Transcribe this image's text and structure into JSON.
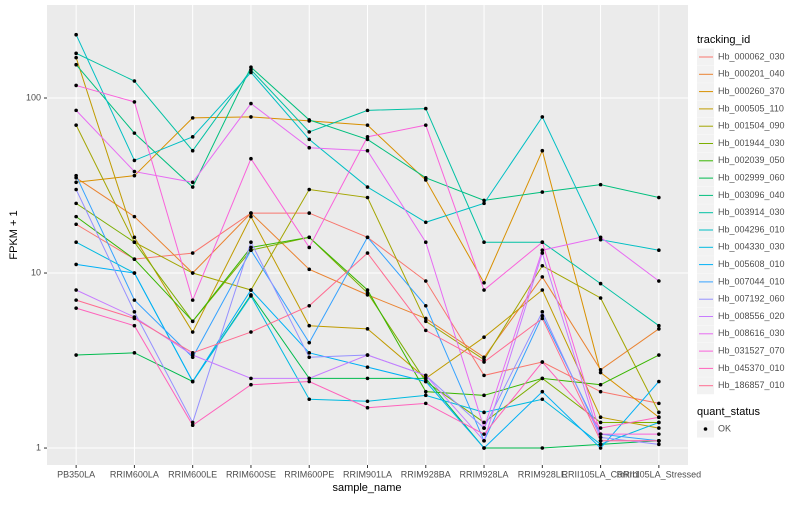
{
  "chart_data": {
    "type": "line",
    "y_label": "FPKM + 1",
    "x_label": "sample_name",
    "categories": [
      "PB350LA",
      "RRIM600LA",
      "RRIM600LE",
      "RRIM600SE",
      "RRIM600PE",
      "RRIM901LA",
      "RRIM928BA",
      "RRIM928LA",
      "RRIM928LE",
      "RRII105LA_Control",
      "RRII105LA_Stressed"
    ],
    "y_scale": "log",
    "ylim": [
      0.8,
      340
    ],
    "yticks": [
      1,
      10,
      100
    ],
    "grid": true,
    "legend_position": "right",
    "legend_title": "tracking_id",
    "point_legend_title": "quant_status",
    "point_legend_label": "OK",
    "point_color": "#000000",
    "series": [
      {
        "name": "Hb_000062_030",
        "color": "#F8766D",
        "values": [
          19,
          12,
          13,
          22,
          22,
          16,
          9,
          2.6,
          3.1,
          2.1,
          1.8
        ]
      },
      {
        "name": "Hb_000201_040",
        "color": "#EA8331",
        "values": [
          35,
          21,
          10,
          22,
          10.5,
          7.5,
          5.5,
          3.3,
          9.5,
          2.8,
          4.8
        ]
      },
      {
        "name": "Hb_000260_370",
        "color": "#D89000",
        "values": [
          33,
          36,
          77,
          78,
          74,
          70,
          34,
          8.8,
          50,
          2.7,
          1.5
        ]
      },
      {
        "name": "Hb_000505_110",
        "color": "#C09B00",
        "values": [
          170,
          16,
          4.6,
          21,
          5,
          4.8,
          2.5,
          4.3,
          8,
          1.5,
          1.3
        ]
      },
      {
        "name": "Hb_001504_090",
        "color": "#A3A500",
        "values": [
          70,
          15,
          10,
          8,
          30,
          27,
          5.3,
          3.2,
          11,
          7.2,
          1.6
        ]
      },
      {
        "name": "Hb_001944_030",
        "color": "#7CAE00",
        "values": [
          25,
          15,
          5.3,
          13.5,
          16,
          7.7,
          2.4,
          1.4,
          2.5,
          1.4,
          1.4
        ]
      },
      {
        "name": "Hb_002039_050",
        "color": "#39B600",
        "values": [
          21,
          12,
          5.3,
          14,
          16,
          8,
          2.1,
          2,
          2.5,
          2.3,
          3.4
        ]
      },
      {
        "name": "Hb_002999_060",
        "color": "#00BB4E",
        "values": [
          3.4,
          3.5,
          2.4,
          7.5,
          2.5,
          2.5,
          2.5,
          1,
          1,
          1.05,
          1.1
        ]
      },
      {
        "name": "Hb_003096_040",
        "color": "#00BF7D",
        "values": [
          155,
          63,
          31,
          150,
          75,
          58,
          35,
          26,
          29,
          32,
          27
        ]
      },
      {
        "name": "Hb_003914_030",
        "color": "#00C1A3",
        "values": [
          180,
          125,
          50,
          145,
          64,
          85,
          87,
          15,
          15,
          8.7,
          5
        ]
      },
      {
        "name": "Hb_004296_010",
        "color": "#00BFC4",
        "values": [
          230,
          44,
          60,
          140,
          58,
          31,
          19.5,
          25,
          78,
          15.5,
          13.5
        ]
      },
      {
        "name": "Hb_004330_030",
        "color": "#00BAE0",
        "values": [
          15,
          10,
          2.4,
          7.4,
          1.9,
          1.85,
          2,
          1.6,
          1.9,
          1.05,
          1.4
        ]
      },
      {
        "name": "Hb_005608_010",
        "color": "#00B0F6",
        "values": [
          11.2,
          10,
          2.4,
          8,
          3.5,
          2.9,
          2.4,
          1,
          2.1,
          1,
          2.4
        ]
      },
      {
        "name": "Hb_007044_010",
        "color": "#35A2FF",
        "values": [
          36,
          7,
          3.3,
          13.5,
          4,
          16,
          6.5,
          1.1,
          5.7,
          1.2,
          1.1
        ]
      },
      {
        "name": "Hb_007192_060",
        "color": "#9590FF",
        "values": [
          30,
          6,
          1.4,
          15,
          3.3,
          3.4,
          2.6,
          1.3,
          6,
          1.15,
          1.05
        ]
      },
      {
        "name": "Hb_008556_020",
        "color": "#C77CFF",
        "values": [
          8,
          5.6,
          3.4,
          2.5,
          2.5,
          3.4,
          2.6,
          1.1,
          13,
          1.1,
          1.1
        ]
      },
      {
        "name": "Hb_008616_030",
        "color": "#E76BF3",
        "values": [
          85,
          38,
          33,
          93,
          52,
          50,
          15,
          1.3,
          13.5,
          16,
          9
        ]
      },
      {
        "name": "Hb_031527_070",
        "color": "#FA62DB",
        "values": [
          118,
          95,
          7,
          45,
          14,
          60,
          70,
          8,
          15,
          1.2,
          1.2
        ]
      },
      {
        "name": "Hb_045370_010",
        "color": "#FF62BC",
        "values": [
          6.3,
          5,
          1.35,
          2.3,
          2.4,
          1.7,
          1.8,
          1.2,
          3.1,
          1.3,
          1.5
        ]
      },
      {
        "name": "Hb_186857_010",
        "color": "#FF6C91",
        "values": [
          7,
          5.5,
          3.5,
          4.6,
          6.5,
          13,
          4.7,
          3.1,
          5.5,
          1.1,
          1.1
        ]
      }
    ]
  }
}
